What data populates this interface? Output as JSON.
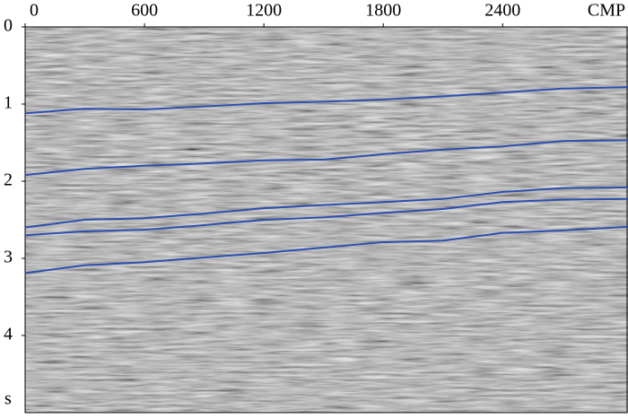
{
  "chart_data": {
    "type": "line",
    "xlabel": "CMP",
    "ylabel": "s",
    "x": [
      0,
      300,
      600,
      900,
      1200,
      1500,
      1800,
      2100,
      2400,
      2700,
      3030
    ],
    "series": [
      {
        "color": "#2c4fae",
        "values": [
          1.12,
          1.06,
          1.07,
          1.03,
          0.99,
          0.97,
          0.94,
          0.9,
          0.85,
          0.8,
          0.78
        ]
      },
      {
        "color": "#2c4fae",
        "values": [
          1.92,
          1.84,
          1.8,
          1.77,
          1.73,
          1.72,
          1.65,
          1.59,
          1.55,
          1.48,
          1.47
        ]
      },
      {
        "color": "#2c4fae",
        "values": [
          2.6,
          2.5,
          2.48,
          2.42,
          2.35,
          2.31,
          2.27,
          2.23,
          2.14,
          2.09,
          2.08
        ]
      },
      {
        "color": "#2c4fae",
        "values": [
          2.7,
          2.65,
          2.63,
          2.57,
          2.5,
          2.47,
          2.41,
          2.36,
          2.27,
          2.24,
          2.23
        ]
      },
      {
        "color": "#2c4fae",
        "values": [
          3.19,
          3.09,
          3.05,
          2.99,
          2.93,
          2.86,
          2.79,
          2.77,
          2.67,
          2.64,
          2.59
        ]
      }
    ],
    "xlim": [
      0,
      3030
    ],
    "xticks": [
      0,
      600,
      1200,
      1800,
      2400
    ],
    "ylim": [
      0,
      5
    ],
    "yticks": [
      0,
      1,
      2,
      3,
      4
    ],
    "y_reversed": true
  }
}
